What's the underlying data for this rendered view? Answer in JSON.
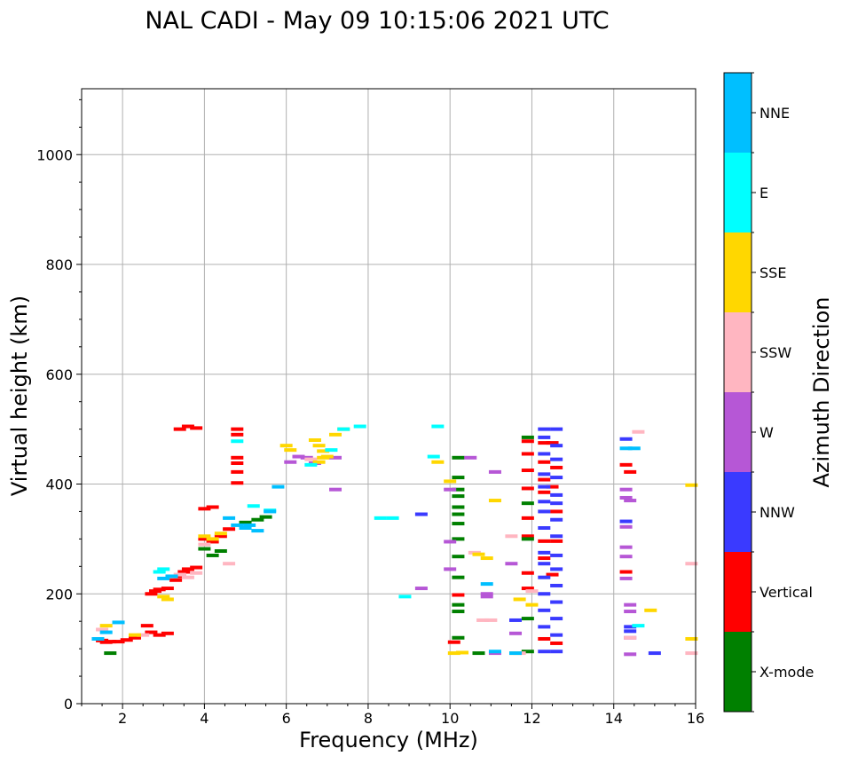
{
  "chart_data": {
    "type": "scatter",
    "title": "NAL CADI - May 09 10:15:06 2021 UTC",
    "xlabel": "Frequency (MHz)",
    "ylabel": "Virtual height (km)",
    "xlim": [
      1,
      16
    ],
    "ylim": [
      0,
      1120
    ],
    "xticks": [
      2,
      4,
      6,
      8,
      10,
      12,
      14,
      16
    ],
    "yticks": [
      0,
      200,
      400,
      600,
      800,
      1000
    ],
    "grid": true,
    "colorbar": {
      "label": "Azimuth Direction",
      "categories": [
        {
          "name": "X-mode",
          "color": "#008000"
        },
        {
          "name": "Vertical",
          "color": "#ff0000"
        },
        {
          "name": "NNW",
          "color": "#3a3aff"
        },
        {
          "name": "W",
          "color": "#b657d6"
        },
        {
          "name": "SSW",
          "color": "#ffb6c1"
        },
        {
          "name": "SSE",
          "color": "#ffd700"
        },
        {
          "name": "E",
          "color": "#00ffff"
        },
        {
          "name": "NNE",
          "color": "#00bfff"
        }
      ]
    },
    "series": [
      {
        "name": "Vertical",
        "points": [
          [
            1.5,
            115
          ],
          [
            1.6,
            112
          ],
          [
            1.7,
            113
          ],
          [
            1.9,
            113
          ],
          [
            2.1,
            116
          ],
          [
            2.3,
            120
          ],
          [
            2.6,
            142
          ],
          [
            2.7,
            130
          ],
          [
            2.9,
            125
          ],
          [
            3.1,
            128
          ],
          [
            2.7,
            200
          ],
          [
            2.8,
            205
          ],
          [
            2.9,
            208
          ],
          [
            3.1,
            210
          ],
          [
            3.3,
            225
          ],
          [
            3.4,
            232
          ],
          [
            3.5,
            240
          ],
          [
            3.6,
            245
          ],
          [
            3.8,
            248
          ],
          [
            3.4,
            500
          ],
          [
            3.6,
            505
          ],
          [
            3.8,
            502
          ],
          [
            4.0,
            355
          ],
          [
            4.2,
            358
          ],
          [
            4.0,
            300
          ],
          [
            4.2,
            295
          ],
          [
            4.4,
            305
          ],
          [
            4.6,
            318
          ],
          [
            4.8,
            500
          ],
          [
            4.8,
            490
          ],
          [
            4.8,
            448
          ],
          [
            4.8,
            438
          ],
          [
            4.8,
            422
          ],
          [
            4.8,
            402
          ],
          [
            12.3,
            475
          ],
          [
            12.5,
            475
          ],
          [
            12.3,
            440
          ],
          [
            12.6,
            430
          ],
          [
            12.3,
            408
          ],
          [
            12.5,
            395
          ],
          [
            12.3,
            385
          ],
          [
            12.6,
            350
          ],
          [
            12.3,
            296
          ],
          [
            12.6,
            296
          ],
          [
            12.3,
            265
          ],
          [
            12.5,
            235
          ],
          [
            12.3,
            118
          ],
          [
            12.6,
            110
          ],
          [
            11.9,
            478
          ],
          [
            11.9,
            455
          ],
          [
            11.9,
            425
          ],
          [
            11.9,
            392
          ],
          [
            11.9,
            338
          ],
          [
            11.9,
            305
          ],
          [
            11.9,
            238
          ],
          [
            11.9,
            210
          ],
          [
            14.3,
            435
          ],
          [
            14.4,
            422
          ],
          [
            14.3,
            240
          ],
          [
            10.1,
            112
          ],
          [
            10.2,
            198
          ]
        ]
      },
      {
        "name": "X-mode",
        "points": [
          [
            1.7,
            92
          ],
          [
            4.0,
            282
          ],
          [
            4.2,
            270
          ],
          [
            4.4,
            278
          ],
          [
            5.0,
            330
          ],
          [
            5.3,
            335
          ],
          [
            5.5,
            340
          ],
          [
            10.2,
            448
          ],
          [
            10.2,
            412
          ],
          [
            10.2,
            390
          ],
          [
            10.2,
            378
          ],
          [
            10.2,
            358
          ],
          [
            10.2,
            345
          ],
          [
            10.2,
            328
          ],
          [
            10.2,
            300
          ],
          [
            10.2,
            268
          ],
          [
            10.2,
            230
          ],
          [
            10.2,
            180
          ],
          [
            10.2,
            168
          ],
          [
            10.2,
            120
          ],
          [
            10.7,
            92
          ],
          [
            11.9,
            485
          ],
          [
            11.9,
            365
          ],
          [
            11.9,
            300
          ],
          [
            11.9,
            155
          ],
          [
            11.9,
            95
          ]
        ]
      },
      {
        "name": "NNW",
        "points": [
          [
            12.3,
            500
          ],
          [
            12.6,
            500
          ],
          [
            12.3,
            485
          ],
          [
            12.6,
            470
          ],
          [
            12.3,
            455
          ],
          [
            12.6,
            445
          ],
          [
            12.3,
            418
          ],
          [
            12.6,
            412
          ],
          [
            12.3,
            395
          ],
          [
            12.6,
            380
          ],
          [
            12.3,
            368
          ],
          [
            12.6,
            365
          ],
          [
            12.3,
            350
          ],
          [
            12.6,
            335
          ],
          [
            12.3,
            320
          ],
          [
            12.6,
            305
          ],
          [
            12.3,
            275
          ],
          [
            12.6,
            270
          ],
          [
            12.3,
            255
          ],
          [
            12.6,
            245
          ],
          [
            12.3,
            230
          ],
          [
            12.6,
            215
          ],
          [
            12.3,
            200
          ],
          [
            12.6,
            185
          ],
          [
            12.3,
            170
          ],
          [
            12.6,
            155
          ],
          [
            12.3,
            140
          ],
          [
            12.6,
            125
          ],
          [
            12.3,
            95
          ],
          [
            12.6,
            95
          ],
          [
            14.3,
            482
          ],
          [
            14.3,
            332
          ],
          [
            14.4,
            140
          ],
          [
            14.4,
            132
          ],
          [
            15.0,
            92
          ],
          [
            9.3,
            345
          ],
          [
            11.6,
            152
          ]
        ]
      },
      {
        "name": "W",
        "points": [
          [
            6.1,
            440
          ],
          [
            6.3,
            450
          ],
          [
            6.5,
            448
          ],
          [
            6.7,
            438
          ],
          [
            7.2,
            448
          ],
          [
            7.2,
            390
          ],
          [
            14.3,
            390
          ],
          [
            14.3,
            375
          ],
          [
            14.4,
            370
          ],
          [
            14.3,
            322
          ],
          [
            14.3,
            285
          ],
          [
            14.3,
            268
          ],
          [
            14.3,
            228
          ],
          [
            14.4,
            180
          ],
          [
            14.4,
            168
          ],
          [
            14.4,
            120
          ],
          [
            14.4,
            90
          ],
          [
            11.6,
            128
          ],
          [
            11.1,
            92
          ],
          [
            10.5,
            448
          ],
          [
            10.0,
            390
          ],
          [
            10.0,
            295
          ],
          [
            10.0,
            245
          ],
          [
            10.9,
            200
          ],
          [
            10.9,
            195
          ],
          [
            11.5,
            255
          ],
          [
            9.3,
            210
          ],
          [
            11.1,
            422
          ]
        ]
      },
      {
        "name": "SSW",
        "points": [
          [
            1.5,
            135
          ],
          [
            2.5,
            125
          ],
          [
            3.4,
            235
          ],
          [
            3.6,
            230
          ],
          [
            3.8,
            238
          ],
          [
            4.0,
            290
          ],
          [
            4.6,
            255
          ],
          [
            6.6,
            445
          ],
          [
            14.6,
            495
          ],
          [
            14.4,
            120
          ],
          [
            15.9,
            255
          ],
          [
            15.9,
            92
          ],
          [
            11.5,
            305
          ],
          [
            10.6,
            275
          ],
          [
            10.8,
            152
          ],
          [
            11.0,
            152
          ],
          [
            11.7,
            92
          ],
          [
            12.0,
            205
          ]
        ]
      },
      {
        "name": "SSE",
        "points": [
          [
            1.6,
            142
          ],
          [
            2.3,
            125
          ],
          [
            3.1,
            190
          ],
          [
            3.0,
            195
          ],
          [
            4.0,
            305
          ],
          [
            4.2,
            300
          ],
          [
            4.4,
            310
          ],
          [
            6.0,
            470
          ],
          [
            6.1,
            462
          ],
          [
            6.7,
            480
          ],
          [
            6.8,
            470
          ],
          [
            6.9,
            460
          ],
          [
            6.9,
            448
          ],
          [
            6.8,
            440
          ],
          [
            7.0,
            450
          ],
          [
            7.2,
            490
          ],
          [
            7.4,
            500
          ],
          [
            9.7,
            440
          ],
          [
            10.0,
            405
          ],
          [
            10.3,
            93
          ],
          [
            10.9,
            265
          ],
          [
            11.1,
            370
          ],
          [
            11.7,
            190
          ],
          [
            11.6,
            92
          ],
          [
            12.0,
            180
          ],
          [
            14.9,
            170
          ],
          [
            15.9,
            118
          ],
          [
            15.9,
            398
          ],
          [
            10.7,
            272
          ],
          [
            10.1,
            92
          ]
        ]
      },
      {
        "name": "E",
        "points": [
          [
            2.9,
            240
          ],
          [
            3.0,
            245
          ],
          [
            4.8,
            478
          ],
          [
            5.2,
            360
          ],
          [
            5.6,
            352
          ],
          [
            6.6,
            435
          ],
          [
            7.1,
            462
          ],
          [
            7.4,
            500
          ],
          [
            7.8,
            505
          ],
          [
            8.3,
            338
          ],
          [
            8.6,
            338
          ],
          [
            8.9,
            195
          ],
          [
            9.6,
            450
          ],
          [
            9.7,
            505
          ],
          [
            14.6,
            142
          ]
        ]
      },
      {
        "name": "NNE",
        "points": [
          [
            1.4,
            118
          ],
          [
            1.6,
            130
          ],
          [
            1.9,
            148
          ],
          [
            3.0,
            228
          ],
          [
            3.2,
            232
          ],
          [
            4.6,
            338
          ],
          [
            4.8,
            325
          ],
          [
            5.0,
            320
          ],
          [
            5.1,
            325
          ],
          [
            5.3,
            315
          ],
          [
            5.6,
            350
          ],
          [
            5.8,
            395
          ],
          [
            10.9,
            218
          ],
          [
            11.1,
            95
          ],
          [
            11.6,
            92
          ],
          [
            14.3,
            465
          ],
          [
            14.5,
            465
          ]
        ]
      }
    ]
  }
}
